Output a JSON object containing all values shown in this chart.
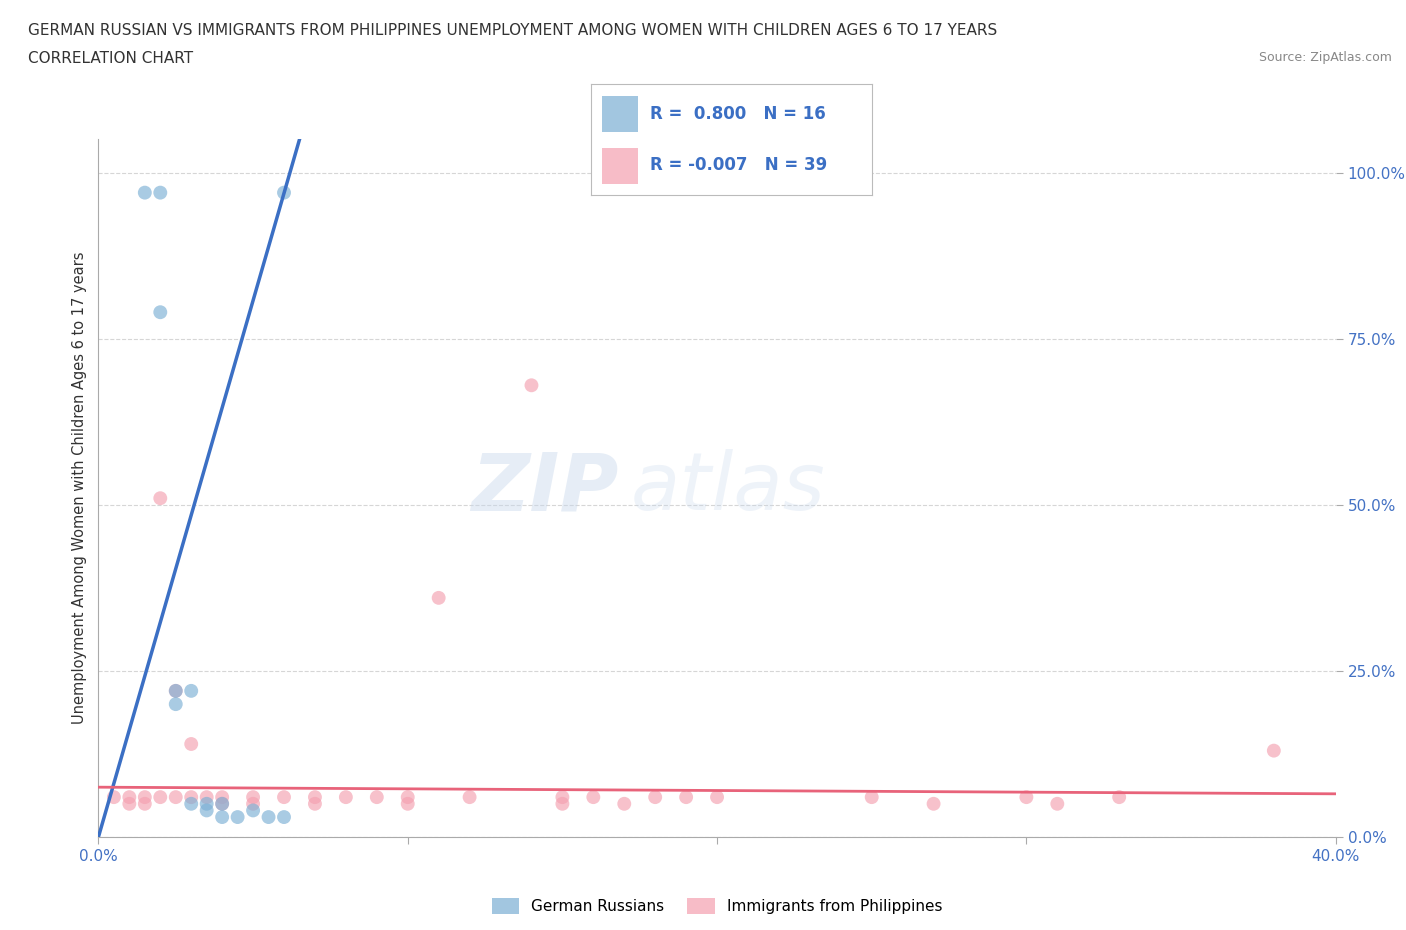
{
  "title_line1": "GERMAN RUSSIAN VS IMMIGRANTS FROM PHILIPPINES UNEMPLOYMENT AMONG WOMEN WITH CHILDREN AGES 6 TO 17 YEARS",
  "title_line2": "CORRELATION CHART",
  "source_text": "Source: ZipAtlas.com",
  "ylabel": "Unemployment Among Women with Children Ages 6 to 17 years",
  "xlim": [
    0.0,
    0.4
  ],
  "ylim": [
    0.0,
    1.05
  ],
  "y_ticks": [
    0.0,
    0.25,
    0.5,
    0.75,
    1.0
  ],
  "y_tick_labels": [
    "0.0%",
    "25.0%",
    "50.0%",
    "75.0%",
    "100.0%"
  ],
  "blue_color": "#7BAFD4",
  "pink_color": "#F4A0B0",
  "blue_line_color": "#3B6FC4",
  "pink_line_color": "#E8637A",
  "legend_R_blue": "0.800",
  "legend_N_blue": "16",
  "legend_R_pink": "-0.007",
  "legend_N_pink": "39",
  "legend_label_blue": "German Russians",
  "legend_label_pink": "Immigrants from Philippines",
  "watermark_zip": "ZIP",
  "watermark_atlas": "atlas",
  "blue_scatter_x": [
    0.015,
    0.02,
    0.02,
    0.025,
    0.025,
    0.03,
    0.03,
    0.035,
    0.035,
    0.04,
    0.04,
    0.045,
    0.05,
    0.055,
    0.06,
    0.06
  ],
  "blue_scatter_y": [
    0.97,
    0.97,
    0.79,
    0.22,
    0.2,
    0.22,
    0.05,
    0.05,
    0.04,
    0.05,
    0.03,
    0.03,
    0.04,
    0.03,
    0.03,
    0.97
  ],
  "pink_scatter_x": [
    0.005,
    0.01,
    0.01,
    0.015,
    0.015,
    0.02,
    0.02,
    0.025,
    0.025,
    0.03,
    0.03,
    0.035,
    0.04,
    0.04,
    0.05,
    0.05,
    0.06,
    0.07,
    0.07,
    0.08,
    0.09,
    0.1,
    0.1,
    0.11,
    0.12,
    0.14,
    0.15,
    0.15,
    0.16,
    0.17,
    0.18,
    0.19,
    0.2,
    0.25,
    0.27,
    0.3,
    0.31,
    0.33,
    0.38
  ],
  "pink_scatter_y": [
    0.06,
    0.06,
    0.05,
    0.06,
    0.05,
    0.51,
    0.06,
    0.22,
    0.06,
    0.14,
    0.06,
    0.06,
    0.06,
    0.05,
    0.06,
    0.05,
    0.06,
    0.06,
    0.05,
    0.06,
    0.06,
    0.06,
    0.05,
    0.36,
    0.06,
    0.68,
    0.06,
    0.05,
    0.06,
    0.05,
    0.06,
    0.06,
    0.06,
    0.06,
    0.05,
    0.06,
    0.05,
    0.06,
    0.13
  ],
  "blue_line_x1": 0.0,
  "blue_line_y1": 0.0,
  "blue_line_x2": 0.065,
  "blue_line_y2": 1.05,
  "pink_line_x1": 0.0,
  "pink_line_y1": 0.075,
  "pink_line_x2": 0.4,
  "pink_line_y2": 0.065,
  "marker_size": 100,
  "background_color": "#FFFFFF",
  "grid_color": "#CCCCCC",
  "text_color": "#333333",
  "axis_label_color": "#4472C4"
}
